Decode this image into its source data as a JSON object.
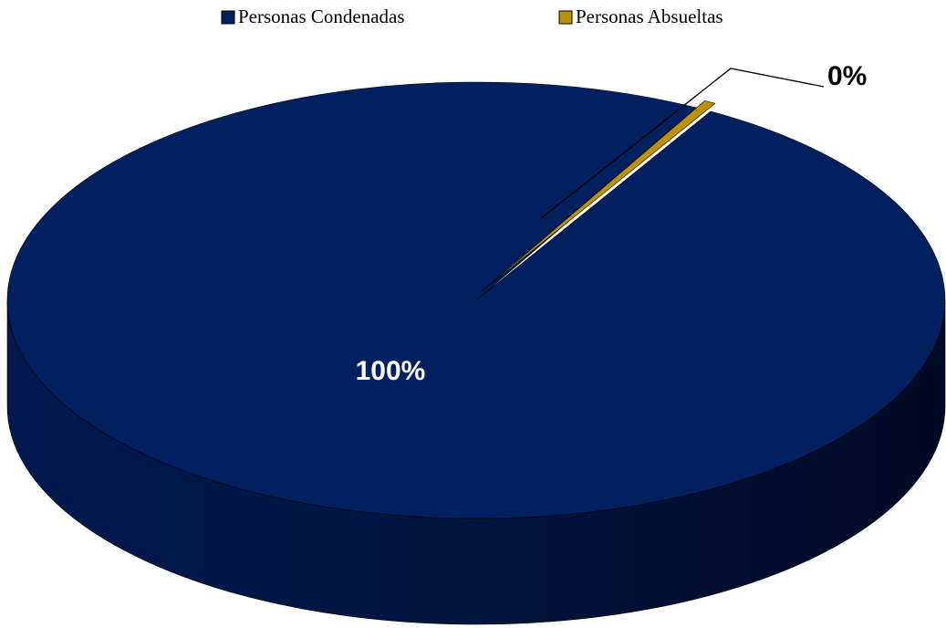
{
  "chart_data": {
    "type": "pie",
    "categories": [
      "Personas Condenadas",
      "Personas Absueltas"
    ],
    "values": [
      99.6,
      0.4
    ],
    "value_labels": [
      "100%",
      "0%"
    ],
    "colors": [
      "#002060",
      "#bf9000"
    ],
    "legend": "top"
  }
}
